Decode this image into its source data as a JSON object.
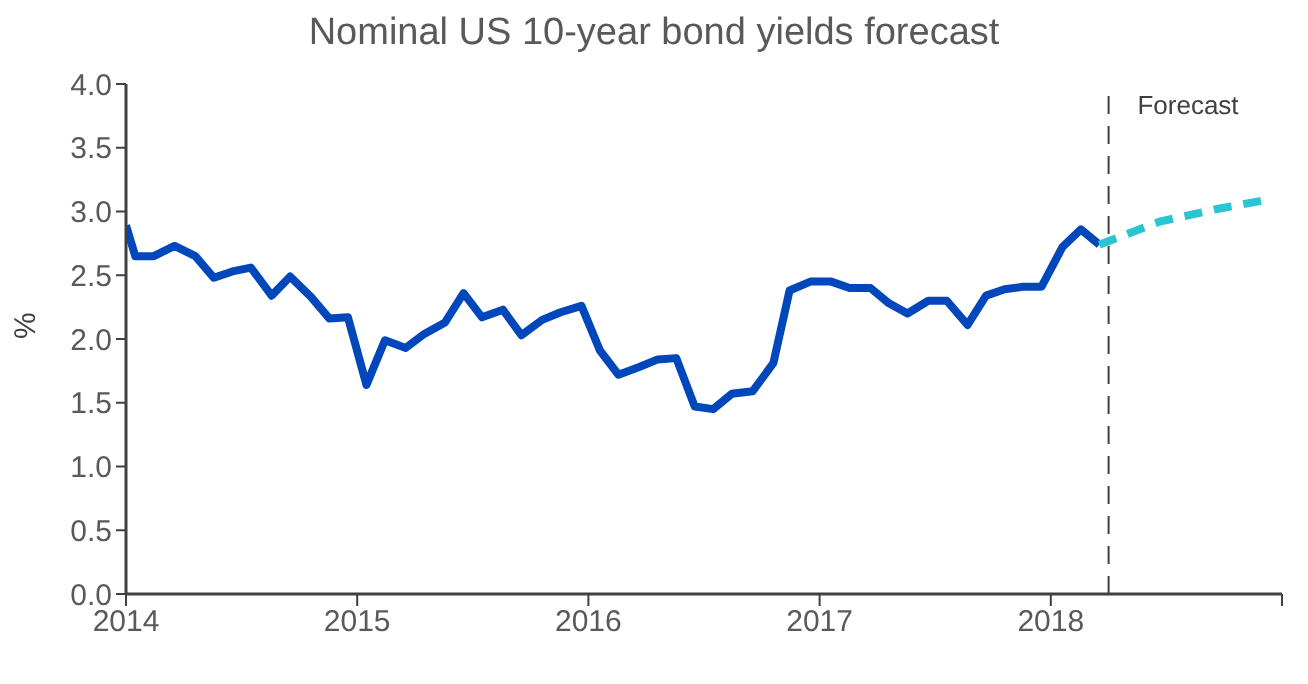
{
  "chart_data": {
    "type": "line",
    "title": "Nominal US 10-year bond yields forecast",
    "ylabel": "%",
    "xlim": [
      2014,
      2019
    ],
    "xticks": [
      2014,
      2015,
      2016,
      2017,
      2018,
      {
        "value": 2019,
        "label": null
      }
    ],
    "ylim": [
      0,
      4
    ],
    "yticks": [
      {
        "value": 0,
        "label": "0.0"
      },
      {
        "value": 0.5,
        "label": "0.5"
      },
      {
        "value": 1,
        "label": "1.0"
      },
      {
        "value": 1.5,
        "label": "1.5"
      },
      {
        "value": 2,
        "label": "2.0"
      },
      {
        "value": 2.5,
        "label": "2.5"
      },
      {
        "value": 3,
        "label": "3.0"
      },
      {
        "value": 3.5,
        "label": "3.5"
      },
      {
        "value": 4,
        "label": "4.0"
      }
    ],
    "marker": "none",
    "series": [
      {
        "color": "#0047bb",
        "line_style": "solid",
        "x": [
          2014.0,
          2014.04,
          2014.12,
          2014.21,
          2014.3,
          2014.38,
          2014.46,
          2014.54,
          2014.63,
          2014.71,
          2014.8,
          2014.88,
          2014.96,
          2015.04,
          2015.12,
          2015.21,
          2015.29,
          2015.38,
          2015.46,
          2015.54,
          2015.63,
          2015.71,
          2015.8,
          2015.88,
          2015.97,
          2016.05,
          2016.13,
          2016.22,
          2016.3,
          2016.38,
          2016.46,
          2016.54,
          2016.62,
          2016.71,
          2016.8,
          2016.87,
          2016.96,
          2017.05,
          2017.13,
          2017.22,
          2017.3,
          2017.38,
          2017.47,
          2017.55,
          2017.64,
          2017.72,
          2017.8,
          2017.88,
          2017.96,
          2018.05,
          2018.13,
          2018.21
        ],
        "values": [
          2.89,
          2.65,
          2.65,
          2.73,
          2.65,
          2.48,
          2.53,
          2.56,
          2.34,
          2.49,
          2.33,
          2.16,
          2.17,
          1.64,
          1.99,
          1.93,
          2.04,
          2.13,
          2.36,
          2.17,
          2.23,
          2.03,
          2.15,
          2.21,
          2.26,
          1.91,
          1.72,
          1.78,
          1.84,
          1.85,
          1.47,
          1.45,
          1.57,
          1.59,
          1.81,
          2.38,
          2.45,
          2.45,
          2.4,
          2.4,
          2.28,
          2.2,
          2.3,
          2.3,
          2.11,
          2.34,
          2.39,
          2.41,
          2.41,
          2.72,
          2.86,
          2.74
        ]
      },
      {
        "color": "#29c5d3",
        "line_style": "dashed",
        "x": [
          2018.21,
          2018.47,
          2018.72,
          2018.93
        ],
        "values": [
          2.74,
          2.92,
          3.02,
          3.09
        ]
      }
    ],
    "ref_lines": [
      {
        "axis": "x",
        "value": 2018.25,
        "label": "Forecast",
        "color": "#404040",
        "line_style": "dashed"
      }
    ]
  }
}
